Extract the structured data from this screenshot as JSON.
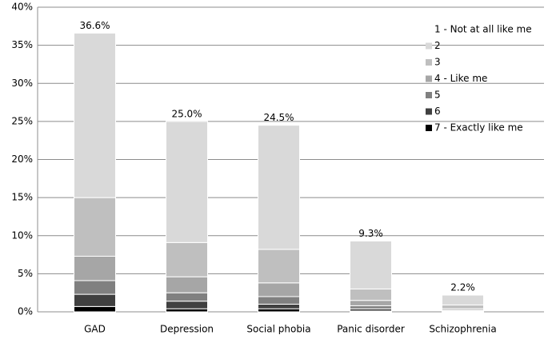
{
  "chart_data": {
    "type": "stacked_bar",
    "categories": [
      "GAD",
      "Depression",
      "Social phobia",
      "Panic disorder",
      "Schizophrenia"
    ],
    "series": [
      {
        "name": "1 - Not at all like me",
        "color": "#ffffff",
        "values": [
          0,
          0,
          0,
          0,
          0
        ]
      },
      {
        "name": "2",
        "color": "#d9d9d9",
        "values": [
          21.6,
          15.9,
          16.3,
          6.3,
          1.3
        ]
      },
      {
        "name": "3",
        "color": "#bfbfbf",
        "values": [
          7.7,
          4.5,
          4.4,
          1.5,
          0.5
        ]
      },
      {
        "name": "4 - Like me",
        "color": "#a6a6a6",
        "values": [
          3.2,
          2.1,
          1.8,
          0.7,
          0.2
        ]
      },
      {
        "name": "5",
        "color": "#808080",
        "values": [
          1.8,
          1.1,
          1.0,
          0.4,
          0.1
        ]
      },
      {
        "name": "6",
        "color": "#404040",
        "values": [
          1.6,
          1.0,
          0.6,
          0.3,
          0.1
        ]
      },
      {
        "name": "7 - Exactly like me",
        "color": "#000000",
        "values": [
          0.7,
          0.4,
          0.4,
          0.1,
          0
        ]
      }
    ],
    "totals": [
      36.6,
      25.0,
      24.5,
      9.3,
      2.2
    ],
    "total_labels": [
      "36.6%",
      "25.0%",
      "24.5%",
      "9.3%",
      "2.2%"
    ],
    "ylim": [
      0,
      40
    ],
    "yticks": [
      {
        "value": 0,
        "label": "0%"
      },
      {
        "value": 5,
        "label": "5%"
      },
      {
        "value": 10,
        "label": "10%"
      },
      {
        "value": 15,
        "label": "15%"
      },
      {
        "value": 20,
        "label": "20%"
      },
      {
        "value": 25,
        "label": "25%"
      },
      {
        "value": 30,
        "label": "30%"
      },
      {
        "value": 35,
        "label": "35%"
      },
      {
        "value": 40,
        "label": "40%"
      }
    ],
    "grid": true,
    "legend": "top-right"
  }
}
